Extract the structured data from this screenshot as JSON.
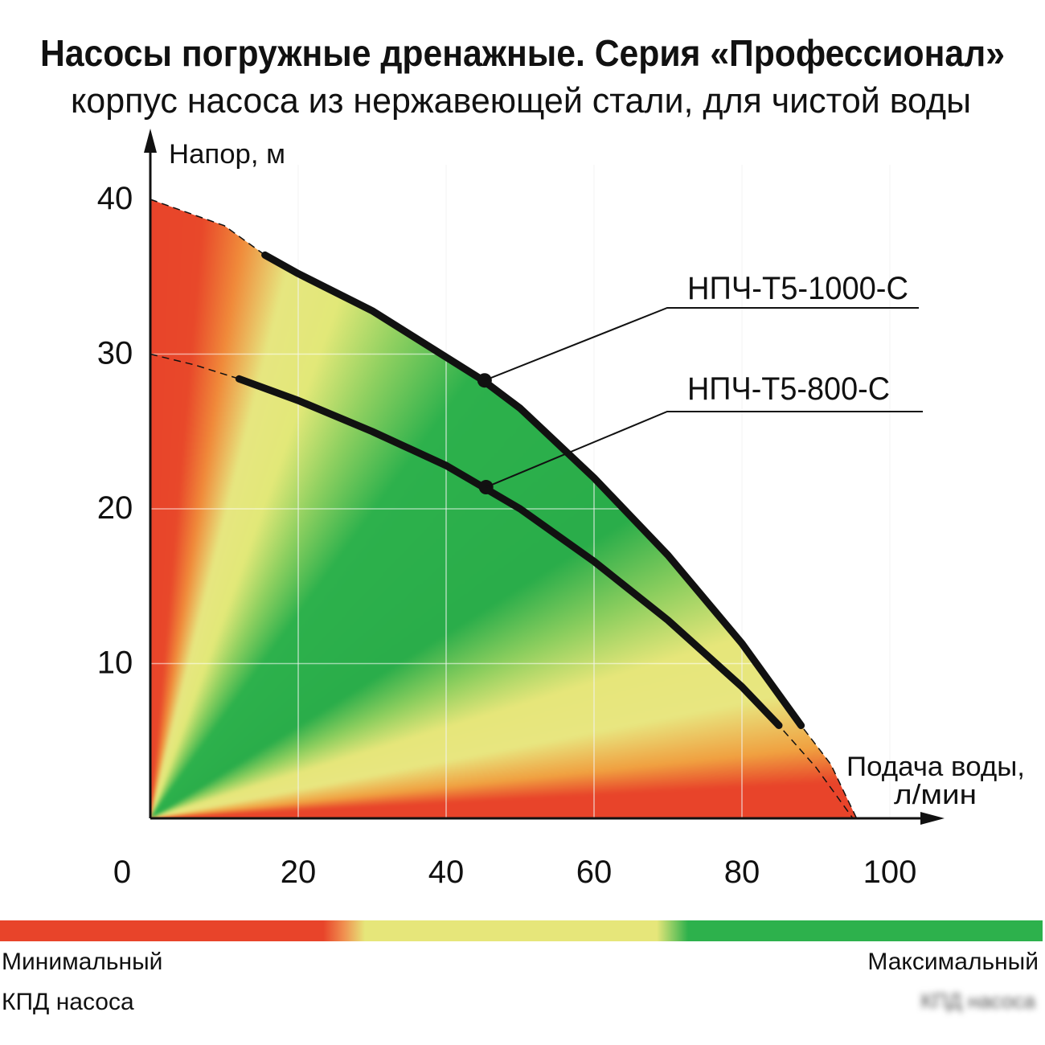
{
  "chart_data": {
    "type": "line",
    "title": "Насосы погружные дренажные. Серия «Профессионал»",
    "subtitle": "корпус насоса из нержавеющей стали, для чистой воды",
    "ylabel": "Напор, м",
    "xlabel_line1": "Подача воды,",
    "xlabel_line2": "л/мин",
    "xlim": [
      0,
      100
    ],
    "ylim": [
      0,
      40
    ],
    "xticks": [
      "0",
      "20",
      "40",
      "60",
      "80",
      "100"
    ],
    "yticks": [
      "10",
      "20",
      "30",
      "40"
    ],
    "grid": true,
    "series": [
      {
        "name": "НПЧ-Т5-1000-С",
        "x": [
          0,
          10,
          15.5,
          20,
          30,
          40,
          45,
          50,
          60,
          70,
          80,
          88,
          92,
          95.5
        ],
        "y": [
          40,
          38.3,
          36.4,
          35.2,
          32.8,
          29.8,
          28.3,
          26.5,
          22,
          17,
          11.3,
          6,
          3.5,
          0
        ],
        "solid_range": [
          15.5,
          88
        ],
        "marker": [
          45.2,
          28.3
        ]
      },
      {
        "name": "НПЧ-Т5-800-С",
        "x": [
          0,
          6,
          12,
          20,
          30,
          40,
          45,
          50,
          60,
          70,
          80,
          85,
          90,
          95
        ],
        "y": [
          30,
          29.3,
          28.4,
          27,
          25,
          22.8,
          21.4,
          20,
          16.6,
          12.8,
          8.5,
          6,
          3.3,
          0
        ],
        "solid_range": [
          12,
          85
        ],
        "marker": [
          45.4,
          21.4
        ]
      }
    ],
    "colorbar": {
      "min_label_1": "Минимальный",
      "min_label_2": "КПД насоса",
      "max_label_1": "Максимальный",
      "max_label_2": "КПД насоса",
      "colors": [
        "#e8442a",
        "#e6e67a",
        "#2db14c"
      ]
    }
  }
}
